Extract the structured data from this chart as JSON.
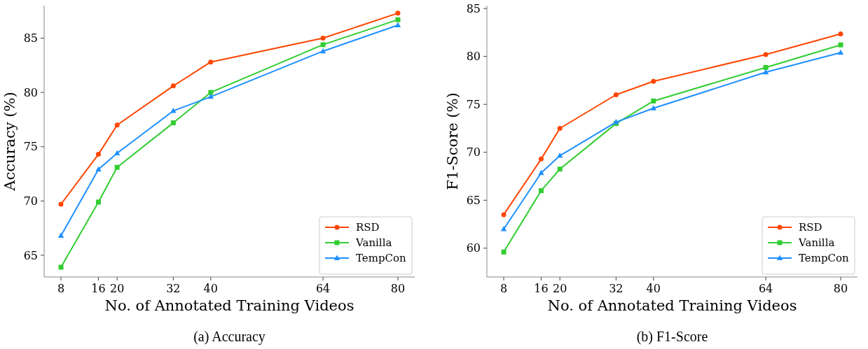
{
  "chart_data": [
    {
      "type": "line",
      "title": "(a) Accuracy",
      "xlabel": "No. of Annotated Training Videos",
      "ylabel": "Accuracy (%)",
      "x": [
        8,
        16,
        20,
        32,
        40,
        64,
        80
      ],
      "xlim": [
        4.4,
        83.6
      ],
      "xticks": [
        8,
        16,
        20,
        32,
        40,
        64,
        80
      ],
      "ylim": [
        63,
        88
      ],
      "yticks": [
        65,
        70,
        75,
        80,
        85
      ],
      "grid": false,
      "legend": "bottom right",
      "series": [
        {
          "name": "RSD",
          "color": "#ff4500",
          "marker": "circle",
          "values": [
            69.7,
            74.3,
            77.0,
            80.6,
            82.8,
            85.0,
            87.3
          ]
        },
        {
          "name": "Vanilla",
          "color": "#32cd32",
          "marker": "square",
          "values": [
            63.9,
            69.9,
            73.1,
            77.2,
            80.0,
            84.4,
            86.7
          ]
        },
        {
          "name": "TempCon",
          "color": "#1e90ff",
          "marker": "triangle",
          "values": [
            66.8,
            72.9,
            74.4,
            78.3,
            79.6,
            83.8,
            86.2
          ]
        }
      ]
    },
    {
      "type": "line",
      "title": "(b) F1-Score",
      "xlabel": "No. of Annotated Training Videos",
      "ylabel": "F1-Score (%)",
      "x": [
        8,
        16,
        20,
        32,
        40,
        64,
        80
      ],
      "xlim": [
        4.4,
        83.6
      ],
      "xticks": [
        8,
        16,
        20,
        32,
        40,
        64,
        80
      ],
      "ylim": [
        57,
        85.3
      ],
      "yticks": [
        60,
        65,
        70,
        75,
        80,
        85
      ],
      "grid": false,
      "legend": "bottom right",
      "series": [
        {
          "name": "RSD",
          "color": "#ff4500",
          "marker": "circle",
          "values": [
            63.5,
            69.3,
            72.5,
            76.0,
            77.4,
            80.2,
            82.35
          ]
        },
        {
          "name": "Vanilla",
          "color": "#32cd32",
          "marker": "square",
          "values": [
            59.6,
            66.0,
            68.25,
            73.0,
            75.35,
            78.85,
            81.2
          ]
        },
        {
          "name": "TempCon",
          "color": "#1e90ff",
          "marker": "triangle",
          "values": [
            62.0,
            67.85,
            69.65,
            73.15,
            74.6,
            78.35,
            80.4
          ]
        }
      ]
    }
  ]
}
